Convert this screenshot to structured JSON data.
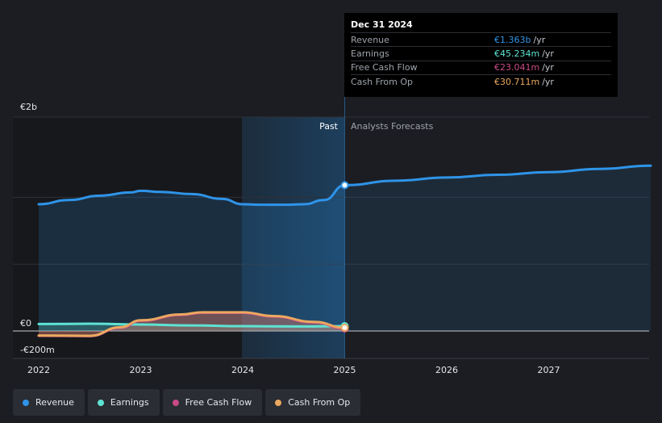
{
  "chart_data": {
    "type": "area",
    "y_unit_labels": {
      "top": "€2b",
      "zero": "€0",
      "bottom": "-€200m"
    },
    "ylim": [
      -200,
      2000
    ],
    "xlim": [
      2022,
      2028
    ],
    "x_ticks": [
      "2022",
      "2023",
      "2024",
      "2025",
      "2026",
      "2027"
    ],
    "x_tick_values": [
      2022,
      2023,
      2024,
      2025,
      2026,
      2027
    ],
    "past_label": "Past",
    "forecast_label": "Analysts Forecasts",
    "divider_x": 2025.0,
    "series": [
      {
        "name": "Revenue",
        "color": "#2f94e8",
        "points": [
          [
            2022.0,
            1185
          ],
          [
            2022.3,
            1225
          ],
          [
            2022.6,
            1265
          ],
          [
            2022.9,
            1295
          ],
          [
            2023.0,
            1310
          ],
          [
            2023.2,
            1300
          ],
          [
            2023.5,
            1280
          ],
          [
            2023.8,
            1235
          ],
          [
            2024.0,
            1185
          ],
          [
            2024.2,
            1180
          ],
          [
            2024.4,
            1180
          ],
          [
            2024.6,
            1185
          ],
          [
            2024.8,
            1225
          ],
          [
            2025.0,
            1363
          ]
        ],
        "forecast": [
          [
            2025.0,
            1363
          ],
          [
            2025.5,
            1405
          ],
          [
            2026.0,
            1435
          ],
          [
            2026.5,
            1460
          ],
          [
            2027.0,
            1485
          ],
          [
            2027.5,
            1515
          ],
          [
            2028.0,
            1545
          ]
        ]
      },
      {
        "name": "Earnings",
        "color": "#5ee3d3",
        "points": [
          [
            2022.0,
            65
          ],
          [
            2022.5,
            68
          ],
          [
            2023.0,
            60
          ],
          [
            2023.5,
            52
          ],
          [
            2024.0,
            45
          ],
          [
            2024.5,
            42
          ],
          [
            2025.0,
            45.234
          ]
        ]
      },
      {
        "name": "Free Cash Flow",
        "color": "#c94a87",
        "points": [
          [
            2022.0,
            -45
          ],
          [
            2022.5,
            -48
          ],
          [
            2022.8,
            30
          ],
          [
            2023.0,
            95
          ],
          [
            2023.4,
            150
          ],
          [
            2023.6,
            170
          ],
          [
            2024.0,
            170
          ],
          [
            2024.3,
            135
          ],
          [
            2024.7,
            80
          ],
          [
            2025.0,
            23.041
          ]
        ]
      },
      {
        "name": "Cash From Op",
        "color": "#eba860",
        "points": [
          [
            2022.0,
            -42
          ],
          [
            2022.5,
            -45
          ],
          [
            2022.8,
            35
          ],
          [
            2023.0,
            100
          ],
          [
            2023.4,
            155
          ],
          [
            2023.6,
            175
          ],
          [
            2024.0,
            175
          ],
          [
            2024.3,
            140
          ],
          [
            2024.7,
            85
          ],
          [
            2025.0,
            30.711
          ]
        ]
      }
    ]
  },
  "tooltip": {
    "date": "Dec 31 2024",
    "rows": [
      {
        "label": "Revenue",
        "value": "€1.363b",
        "unit": "/yr",
        "color": "#2f94e8"
      },
      {
        "label": "Earnings",
        "value": "€45.234m",
        "unit": "/yr",
        "color": "#5ee3d3"
      },
      {
        "label": "Free Cash Flow",
        "value": "€23.041m",
        "unit": "/yr",
        "color": "#c94a87"
      },
      {
        "label": "Cash From Op",
        "value": "€30.711m",
        "unit": "/yr",
        "color": "#eba860"
      }
    ]
  },
  "legend": [
    {
      "label": "Revenue",
      "color": "#2f94e8"
    },
    {
      "label": "Earnings",
      "color": "#5ee3d3"
    },
    {
      "label": "Free Cash Flow",
      "color": "#c94a87"
    },
    {
      "label": "Cash From Op",
      "color": "#eba860"
    }
  ]
}
